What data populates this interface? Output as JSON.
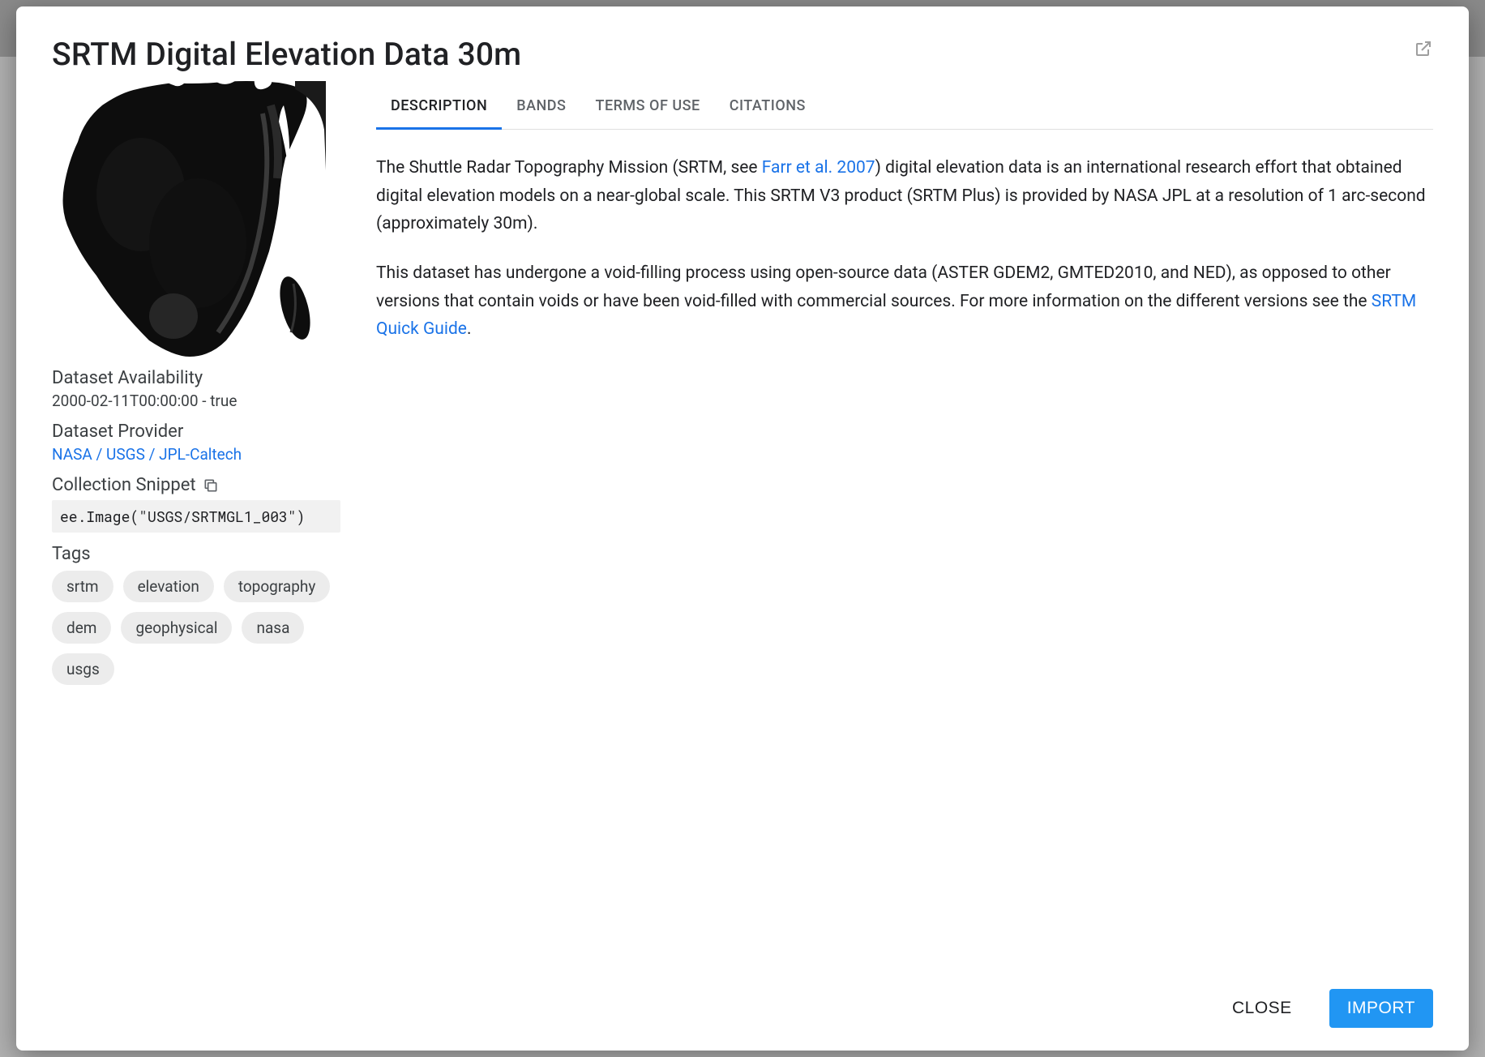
{
  "dialog": {
    "title": "SRTM Digital Elevation Data 30m"
  },
  "sidebar": {
    "availability_label": "Dataset Availability",
    "availability_value": "2000-02-11T00:00:00 - true",
    "provider_label": "Dataset Provider",
    "provider_value": "NASA / USGS / JPL-Caltech",
    "snippet_label": "Collection Snippet",
    "snippet_code": "ee.Image(\"USGS/SRTMGL1_003\")",
    "tags_label": "Tags",
    "tags": [
      "srtm",
      "elevation",
      "topography",
      "dem",
      "geophysical",
      "nasa",
      "usgs"
    ]
  },
  "tabs": {
    "items": [
      "DESCRIPTION",
      "BANDS",
      "TERMS OF USE",
      "CITATIONS"
    ],
    "active_index": 0
  },
  "description": {
    "p1_pre": "The Shuttle Radar Topography Mission (SRTM, see ",
    "p1_link": "Farr et al. 2007",
    "p1_post": ") digital elevation data is an international research effort that obtained digital elevation models on a near-global scale. This SRTM V3 product (SRTM Plus) is provided by NASA JPL at a resolution of 1 arc-second (approximately 30m).",
    "p2_pre": "This dataset has undergone a void-filling process using open-source data (ASTER GDEM2, GMTED2010, and NED), as opposed to other versions that contain voids or have been void-filled with commercial sources. For more information on the different versions see the ",
    "p2_link": "SRTM Quick Guide",
    "p2_post": "."
  },
  "footer": {
    "close_label": "CLOSE",
    "import_label": "IMPORT"
  },
  "colors": {
    "accent": "#1a73e8",
    "primary_button": "#2196f3",
    "tag_bg": "#ececec",
    "code_bg": "#f1f1f1"
  }
}
